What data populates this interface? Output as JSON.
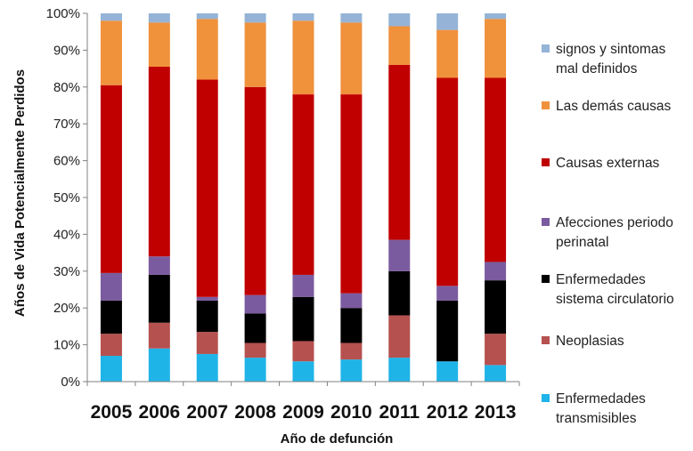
{
  "chart_data": {
    "type": "bar",
    "stacked": true,
    "percent": true,
    "xlabel": "Año de defunción",
    "ylabel": "Años de Vida Potencialmente Perdidos",
    "ylim": [
      0,
      100
    ],
    "yticks": [
      "0%",
      "10%",
      "20%",
      "30%",
      "40%",
      "50%",
      "60%",
      "70%",
      "80%",
      "90%",
      "100%"
    ],
    "grid": false,
    "legend_position": "right",
    "categories": [
      "2005",
      "2006",
      "2007",
      "2008",
      "2009",
      "2010",
      "2011",
      "2012",
      "2013"
    ],
    "series": [
      {
        "name": "Enfermedades transmisibles",
        "legend_lines": [
          "Enfermedades",
          "transmisibles"
        ],
        "color": "#1fb4e8",
        "values": [
          7,
          9,
          7.5,
          6.5,
          5.5,
          6,
          6.5,
          5.5,
          4.5
        ]
      },
      {
        "name": "Neoplasias",
        "legend_lines": [
          "Neoplasias"
        ],
        "color": "#b5514f",
        "values": [
          6,
          7,
          6,
          4,
          5.5,
          4.5,
          11.5,
          0,
          8.5
        ]
      },
      {
        "name": "Enfermedades sistema circulatorio",
        "legend_lines": [
          "Enfermedades",
          "sistema circulatorio"
        ],
        "color": "#000000",
        "values": [
          9,
          13,
          8.5,
          8,
          12,
          9.5,
          12,
          16.5,
          14.5
        ]
      },
      {
        "name": "Afecciones periodo perinatal",
        "legend_lines": [
          "Afecciones periodo",
          "perinatal"
        ],
        "color": "#7b5b9f",
        "values": [
          7.5,
          5,
          1,
          5,
          6,
          4,
          8.5,
          4,
          5
        ]
      },
      {
        "name": "Causas externas",
        "legend_lines": [
          "Causas externas"
        ],
        "color": "#c00000",
        "values": [
          51,
          51.5,
          59,
          56.5,
          49,
          54,
          47.5,
          56.5,
          50
        ]
      },
      {
        "name": "Las demás causas",
        "legend_lines": [
          "Las demás causas"
        ],
        "color": "#f0913c",
        "values": [
          17.5,
          12,
          16.5,
          17.5,
          20,
          19.5,
          10.5,
          13,
          16
        ]
      },
      {
        "name": "signos y sintomas mal definidos",
        "legend_lines": [
          "signos y sintomas",
          "mal definidos"
        ],
        "color": "#95b3d7",
        "values": [
          2,
          2.5,
          1.5,
          2.5,
          2,
          2.5,
          3.5,
          4.5,
          1.5
        ]
      }
    ]
  }
}
